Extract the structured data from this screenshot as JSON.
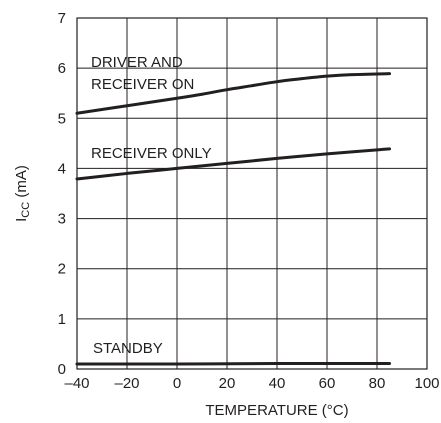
{
  "chart_data": {
    "type": "line",
    "title": "",
    "xlabel": "TEMPERATURE (°C)",
    "ylabel": {
      "main": "I",
      "sub": "CC",
      "unit": " (mA)"
    },
    "xlim": [
      -40,
      100
    ],
    "ylim": [
      0,
      7
    ],
    "xticks": [
      -40,
      -20,
      0,
      20,
      40,
      60,
      80,
      100
    ],
    "xtick_labels": [
      "–40",
      "–20",
      "0",
      "20",
      "40",
      "60",
      "80",
      "100"
    ],
    "yticks": [
      0,
      1,
      2,
      3,
      4,
      5,
      6,
      7
    ],
    "ytick_labels": [
      "0",
      "1",
      "2",
      "3",
      "4",
      "5",
      "6",
      "7"
    ],
    "grid": true,
    "series": [
      {
        "label_lines": [
          "DRIVER AND",
          "RECEIVER ON"
        ],
        "x": [
          -40,
          -20,
          0,
          10,
          20,
          30,
          40,
          50,
          60,
          70,
          85
        ],
        "y": [
          5.1,
          5.25,
          5.4,
          5.48,
          5.57,
          5.65,
          5.73,
          5.79,
          5.84,
          5.87,
          5.89
        ]
      },
      {
        "label_lines": [
          "RECEIVER ONLY"
        ],
        "x": [
          -40,
          -20,
          0,
          20,
          40,
          60,
          85
        ],
        "y": [
          3.79,
          3.9,
          4.0,
          4.1,
          4.2,
          4.29,
          4.39
        ]
      },
      {
        "label_lines": [
          "STANDBY"
        ],
        "x": [
          -40,
          0,
          40,
          85
        ],
        "y": [
          0.1,
          0.1,
          0.11,
          0.11
        ]
      }
    ]
  }
}
